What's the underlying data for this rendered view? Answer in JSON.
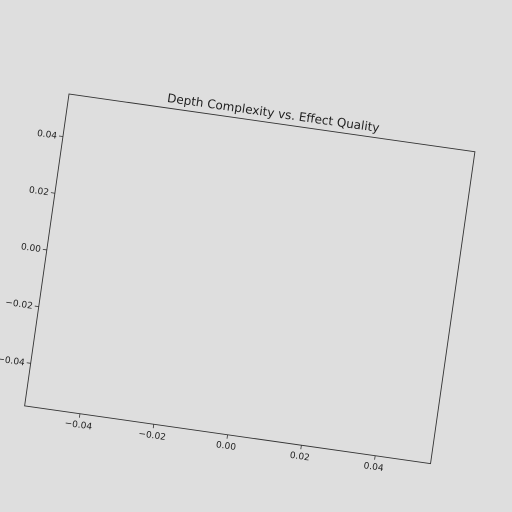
{
  "chart_data": {
    "type": "scatter",
    "title": "Depth Complexity vs. Effect Quality",
    "xlabel": "",
    "ylabel": "",
    "xlim": [
      -0.055,
      0.055
    ],
    "ylim": [
      -0.055,
      0.055
    ],
    "x_ticks": [
      -0.04,
      -0.02,
      0.0,
      0.02,
      0.04
    ],
    "y_ticks": [
      -0.04,
      -0.02,
      0.0,
      0.02,
      0.04
    ],
    "x_tick_labels": [
      "−0.04",
      "−0.02",
      "0.00",
      "0.02",
      "0.04"
    ],
    "y_tick_labels": [
      "−0.04",
      "−0.02",
      "0.00",
      "0.02",
      "0.04"
    ],
    "grid": false,
    "series": []
  },
  "colors": {
    "background": "#dedede",
    "axes_face": "#dedede",
    "axes_edge": "#333333",
    "text": "#222222"
  }
}
